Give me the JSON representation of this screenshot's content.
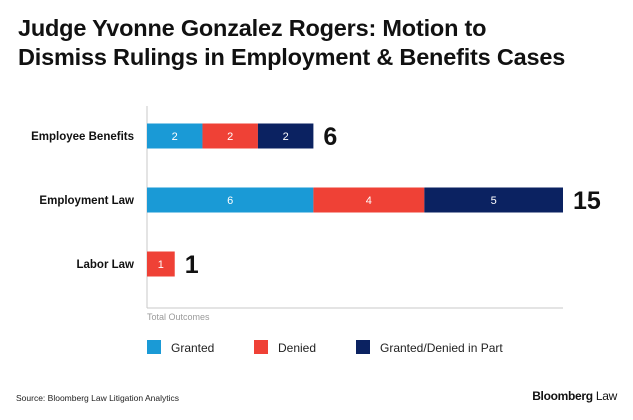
{
  "title_lines": [
    "Judge Yvonne Gonzalez Rogers: Motion to",
    "Dismiss Rulings in Employment & Benefits Cases"
  ],
  "chart_data": {
    "type": "bar",
    "orientation": "horizontal",
    "stacked": true,
    "categories": [
      "Employee Benefits",
      "Employment Law",
      "Labor Law"
    ],
    "series": [
      {
        "name": "Granted",
        "color": "#1a9ad6",
        "values": [
          2,
          6,
          0
        ]
      },
      {
        "name": "Denied",
        "color": "#ef4136",
        "values": [
          2,
          4,
          1
        ]
      },
      {
        "name": "Granted/Denied in Part",
        "color": "#0b2261",
        "values": [
          2,
          5,
          0
        ]
      }
    ],
    "totals": [
      6,
      15,
      1
    ],
    "xlabel": "Total Outcomes",
    "xlim": [
      0,
      15
    ],
    "legend_position": "bottom-left"
  },
  "footer": {
    "source": "Source: Bloomberg Law Litigation Analytics",
    "brand_main": "Bloomberg",
    "brand_sub": "Law"
  }
}
